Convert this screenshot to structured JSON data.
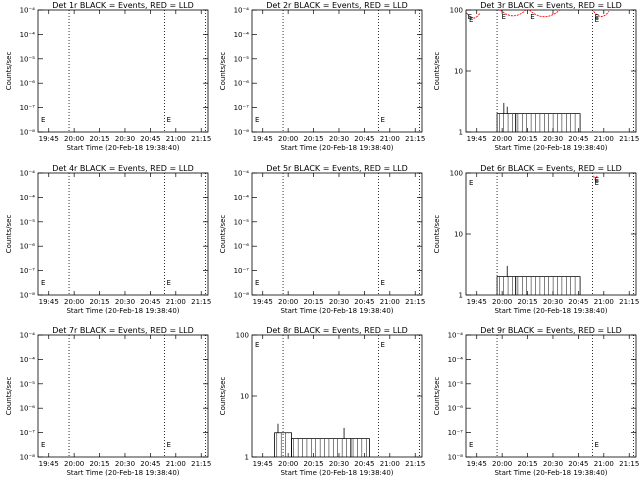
{
  "figure": {
    "x_tick_labels": [
      "19:45",
      "20:00",
      "20:15",
      "20:30",
      "20:45",
      "21:00",
      "21:15"
    ],
    "x_label": "Start Time (20-Feb-18 19:38:40)",
    "y_label": "Counts/sec",
    "e_marker": "E",
    "colors": {
      "events": "#000000",
      "lld": "#ff0000",
      "axes": "#000000"
    }
  },
  "chart_data": [
    {
      "type": "line",
      "title": "Det 1r BLACK = Events, RED = LLD",
      "yscale": "log",
      "ylim": [
        1e-08,
        1e-09
      ],
      "ytick_labels": [
        "10⁻⁸",
        "10⁻⁷",
        "10⁻⁶",
        "10⁻⁵",
        "10⁻⁴",
        "10⁻⁴"
      ],
      "xlim": [
        "19:38:40",
        "21:19:00"
      ],
      "vlines": [
        "19:57:00",
        "20:53:20",
        "21:17:30"
      ],
      "events": [],
      "lld": []
    },
    {
      "type": "line",
      "title": "Det 2r BLACK = Events, RED = LLD",
      "yscale": "log",
      "ylim": [
        1e-08,
        1e-09
      ],
      "ytick_labels": [
        "10⁻⁸",
        "10⁻⁷",
        "10⁻⁶",
        "10⁻⁵",
        "10⁻⁴",
        "10⁻⁴"
      ],
      "xlim": [
        "19:38:40",
        "21:19:00"
      ],
      "vlines": [
        "19:57:00",
        "20:53:20",
        "21:17:30"
      ],
      "events": [],
      "lld": []
    },
    {
      "type": "line",
      "title": "Det 3r BLACK = Events, RED = LLD",
      "yscale": "log",
      "ylim": [
        1,
        100
      ],
      "ytick_labels": [
        "1",
        "10",
        "100"
      ],
      "xlim": [
        "19:38:40",
        "21:19:00"
      ],
      "vlines": [
        "19:57:00",
        "20:53:20",
        "21:17:30"
      ],
      "events": [
        {
          "from": "19:57:00",
          "to": "20:08:00",
          "level": 2,
          "spikes": [
            {
              "t": "20:01:00",
              "y": 3
            },
            {
              "t": "20:03:00",
              "y": 2.6
            }
          ]
        },
        {
          "from": "20:08:00",
          "to": "20:46:00",
          "level": 2,
          "spikes": []
        }
      ],
      "lld": [
        {
          "from": "19:39:00",
          "to": "19:47:00",
          "level": 90,
          "dip": 70
        },
        {
          "from": "19:59:00",
          "to": "20:14:00",
          "level": 100,
          "dip": 75
        },
        {
          "from": "20:16:00",
          "to": "20:34:00",
          "level": 100,
          "dip": 70
        },
        {
          "from": "20:54:00",
          "to": "21:03:00",
          "level": 95,
          "dip": 75
        }
      ]
    },
    {
      "type": "line",
      "title": "Det 4r BLACK = Events, RED = LLD",
      "yscale": "log",
      "ylim": [
        1e-08,
        1e-09
      ],
      "ytick_labels": [
        "10⁻⁸",
        "10⁻⁷",
        "10⁻⁶",
        "10⁻⁵",
        "10⁻⁴",
        "10⁻⁴"
      ],
      "xlim": [
        "19:38:40",
        "21:19:00"
      ],
      "vlines": [
        "19:57:00",
        "20:53:20",
        "21:17:30"
      ],
      "events": [],
      "lld": []
    },
    {
      "type": "line",
      "title": "Det 5r BLACK = Events, RED = LLD",
      "yscale": "log",
      "ylim": [
        1e-08,
        1e-09
      ],
      "ytick_labels": [
        "10⁻⁸",
        "10⁻⁷",
        "10⁻⁶",
        "10⁻⁵",
        "10⁻⁴",
        "10⁻⁴"
      ],
      "xlim": [
        "19:38:40",
        "21:19:00"
      ],
      "vlines": [
        "19:57:00",
        "20:53:20",
        "21:17:30"
      ],
      "events": [],
      "lld": []
    },
    {
      "type": "line",
      "title": "Det 6r BLACK = Events, RED = LLD",
      "yscale": "log",
      "ylim": [
        1,
        100
      ],
      "ytick_labels": [
        "1",
        "10",
        "100"
      ],
      "xlim": [
        "19:38:40",
        "21:19:00"
      ],
      "vlines": [
        "19:57:00",
        "20:53:20",
        "21:17:30"
      ],
      "events": [
        {
          "from": "19:57:00",
          "to": "20:08:00",
          "level": 2,
          "spikes": [
            {
              "t": "20:03:00",
              "y": 3
            }
          ]
        },
        {
          "from": "20:08:00",
          "to": "20:46:00",
          "level": 2,
          "spikes": []
        }
      ],
      "lld": [
        {
          "from": "20:54:00",
          "to": "20:56:00",
          "level": 90,
          "dip": 80
        }
      ]
    },
    {
      "type": "line",
      "title": "Det 7r BLACK = Events, RED = LLD",
      "yscale": "log",
      "ylim": [
        1e-08,
        1e-09
      ],
      "ytick_labels": [
        "10⁻⁸",
        "10⁻⁷",
        "10⁻⁶",
        "10⁻⁵",
        "10⁻⁴",
        "10⁻⁴"
      ],
      "xlim": [
        "19:38:40",
        "21:19:00"
      ],
      "vlines": [
        "19:57:00",
        "20:53:20",
        "21:17:30"
      ],
      "events": [],
      "lld": []
    },
    {
      "type": "line",
      "title": "Det 8r BLACK = Events, RED = LLD",
      "yscale": "log",
      "ylim": [
        1,
        100
      ],
      "ytick_labels": [
        "1",
        "10",
        "100"
      ],
      "xlim": [
        "19:38:40",
        "21:19:00"
      ],
      "vlines": [
        "19:57:00",
        "20:53:20",
        "21:17:30"
      ],
      "events": [
        {
          "from": "19:52:00",
          "to": "20:02:00",
          "level": 2.5,
          "spikes": [
            {
              "t": "19:54:00",
              "y": 3.5
            }
          ]
        },
        {
          "from": "20:02:00",
          "to": "20:37:00",
          "level": 2,
          "spikes": [
            {
              "t": "20:33:00",
              "y": 3
            }
          ]
        },
        {
          "from": "20:37:00",
          "to": "20:48:00",
          "level": 2,
          "spikes": []
        }
      ],
      "lld": []
    },
    {
      "type": "line",
      "title": "Det 9r BLACK = Events, RED = LLD",
      "yscale": "log",
      "ylim": [
        1e-08,
        1e-09
      ],
      "ytick_labels": [
        "10⁻⁸",
        "10⁻⁷",
        "10⁻⁶",
        "10⁻⁵",
        "10⁻⁴",
        "10⁻⁴"
      ],
      "xlim": [
        "19:38:40",
        "21:19:00"
      ],
      "vlines": [
        "19:57:00",
        "20:53:20",
        "21:17:30"
      ],
      "events": [],
      "lld": []
    }
  ]
}
